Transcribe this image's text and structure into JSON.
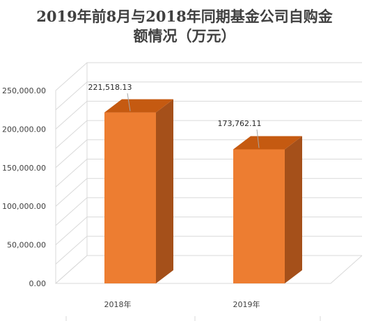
{
  "chart_data": {
    "type": "bar",
    "title_lines": [
      "2019年前8月与2018年同期基金公司自购金",
      "额情况（万元）"
    ],
    "categories": [
      "2018年",
      "2019年"
    ],
    "values": [
      221518.13,
      173762.11
    ],
    "data_labels": [
      "221,518.13",
      "173,762.11"
    ],
    "y_tick_labels": [
      "0.00",
      "50,000.00",
      "100,000.00",
      "150,000.00",
      "200,000.00",
      "250,000.00"
    ],
    "ylim": [
      0,
      250000
    ],
    "xlabel": "",
    "ylabel": "",
    "grid": true,
    "legend": "none",
    "style": "3d-column"
  },
  "colors": {
    "bar_front": "#ED7D31",
    "bar_top": "#C55A11",
    "bar_side": "#A5501A",
    "gridline": "#D9D9D9",
    "title": "#404040"
  }
}
